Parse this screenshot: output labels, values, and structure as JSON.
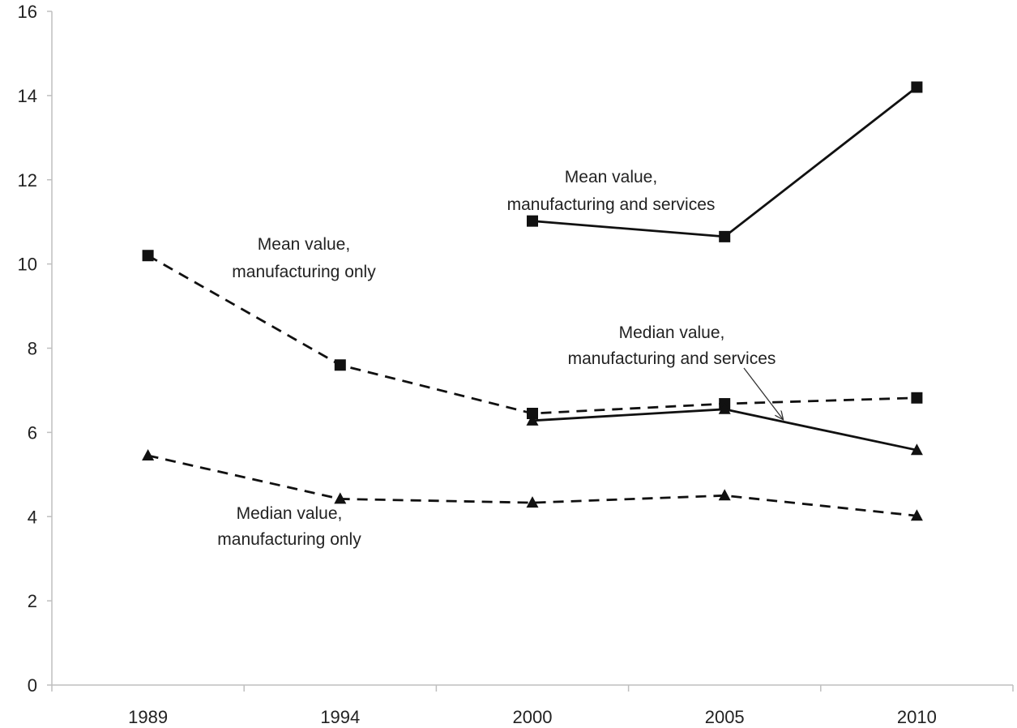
{
  "chart_data": {
    "type": "line",
    "title": "",
    "xlabel": "",
    "ylabel": "",
    "categories": [
      "1989",
      "1994",
      "2000",
      "2005",
      "2010"
    ],
    "ylim": [
      0,
      16
    ],
    "yticks": [
      0,
      2,
      4,
      6,
      8,
      10,
      12,
      14,
      16
    ],
    "grid": false,
    "legend": "none",
    "series": [
      {
        "key": "mean_mfg",
        "values": [
          10.2,
          7.6,
          6.45,
          6.68,
          6.82
        ],
        "marker": "square",
        "line": "dashed",
        "color": "#111111"
      },
      {
        "key": "mean_mfg_services",
        "values": [
          null,
          null,
          11.02,
          10.65,
          14.2
        ],
        "marker": "square",
        "line": "solid",
        "color": "#111111"
      },
      {
        "key": "median_mfg_services",
        "values": [
          null,
          null,
          6.28,
          6.55,
          5.58
        ],
        "marker": "triangle",
        "line": "solid",
        "color": "#111111"
      },
      {
        "key": "median_mfg",
        "values": [
          5.45,
          4.42,
          4.33,
          4.5,
          4.02
        ],
        "marker": "triangle",
        "line": "dashed",
        "color": "#111111"
      }
    ],
    "annotations": [
      {
        "series": "mean_mfg",
        "lines": [
          "Mean value,",
          "manufacturing only"
        ]
      },
      {
        "series": "mean_mfg_services",
        "lines": [
          "Mean value,",
          "manufacturing and services"
        ]
      },
      {
        "series": "median_mfg_services",
        "lines": [
          "Median value,",
          "manufacturing and services"
        ],
        "arrow": true
      },
      {
        "series": "median_mfg",
        "lines": [
          "Median value,",
          "manufacturing only"
        ]
      }
    ]
  }
}
